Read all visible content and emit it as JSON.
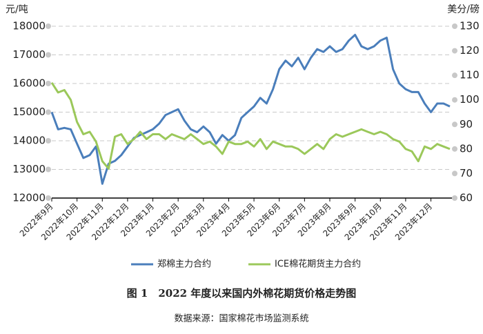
{
  "chart_data": {
    "type": "line",
    "y_unit_label": "元/吨",
    "y2_unit_label": "美分/磅",
    "title": "图 1　2022 年度以来国内外棉花期货价格走势图",
    "source": "数据来源：国家棉花市场监测系统",
    "categories": [
      "2022年9月",
      null,
      null,
      null,
      "2022年10月",
      null,
      null,
      null,
      "2022年11月",
      null,
      null,
      null,
      "2022年12月",
      null,
      null,
      null,
      "2023年1月",
      null,
      null,
      null,
      "2023年2月",
      null,
      null,
      null,
      "2023年3月",
      null,
      null,
      null,
      "2023年4月",
      null,
      null,
      null,
      "2023年5月",
      null,
      null,
      null,
      "2023年6月",
      null,
      null,
      null,
      "2023年7月",
      null,
      null,
      null,
      "2023年8月",
      null,
      null,
      null,
      "2023年9月",
      null,
      null,
      null,
      "2023年10月",
      null,
      null,
      null,
      "2023年11月",
      null,
      null,
      null,
      "2023年12月",
      null,
      null,
      null
    ],
    "series": [
      {
        "name": "郑棉主力合约",
        "color": "#4a7ebb",
        "axis": "y",
        "values": [
          15000,
          14400,
          14450,
          14400,
          13900,
          13400,
          13500,
          13800,
          12500,
          13200,
          13300,
          13500,
          13800,
          14100,
          14200,
          14300,
          14400,
          14600,
          14900,
          15000,
          15100,
          14700,
          14400,
          14300,
          14500,
          14300,
          13900,
          14200,
          14000,
          14200,
          14800,
          15000,
          15200,
          15500,
          15300,
          15800,
          16500,
          16800,
          16600,
          16900,
          16500,
          16900,
          17200,
          17100,
          17300,
          17100,
          17200,
          17500,
          17700,
          17300,
          17200,
          17300,
          17500,
          17600,
          16500,
          16000,
          15800,
          15700,
          15700,
          15300,
          15000,
          15300,
          15300,
          15200
        ]
      },
      {
        "name": "ICE棉花期货主力合约",
        "color": "#9bc85a",
        "axis": "y2",
        "values": [
          107,
          103,
          104,
          100,
          91,
          86,
          87,
          83,
          75,
          72,
          85,
          86,
          82,
          84,
          87,
          84,
          86,
          86,
          84,
          86,
          85,
          84,
          86,
          84,
          82,
          83,
          81,
          78,
          83,
          82,
          82,
          83,
          81,
          84,
          80,
          83,
          82,
          81,
          81,
          80,
          78,
          80,
          82,
          80,
          84,
          86,
          85,
          86,
          87,
          88,
          87,
          86,
          87,
          86,
          84,
          83,
          80,
          79,
          75,
          81,
          80,
          82,
          81,
          80
        ]
      }
    ],
    "ylim": [
      12000,
      18000
    ],
    "yticks": [
      12000,
      13000,
      14000,
      15000,
      16000,
      17000,
      18000
    ],
    "y2lim": [
      60,
      130
    ],
    "y2ticks": [
      60,
      70,
      80,
      90,
      100,
      110,
      120,
      130
    ],
    "grid": true,
    "legend": "bottom"
  }
}
